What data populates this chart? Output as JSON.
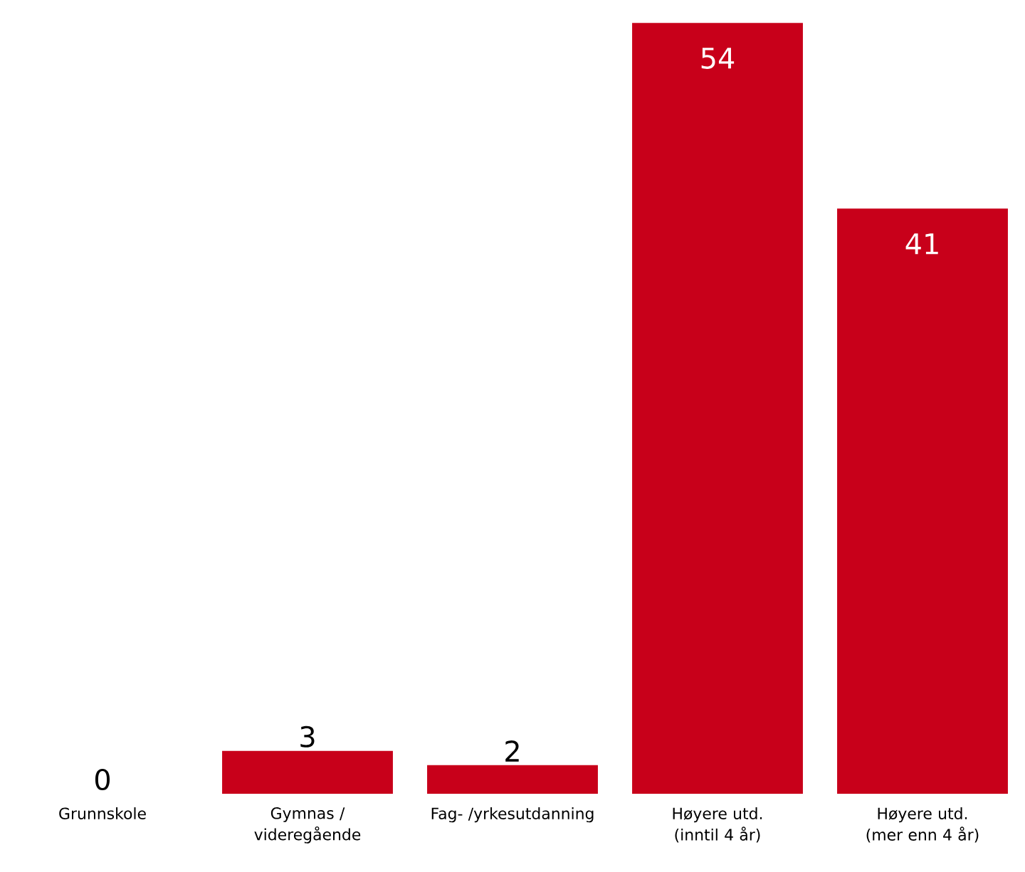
{
  "chart_data": {
    "type": "bar",
    "categories": [
      "Grunnskole",
      "Gymnas / videregående",
      "Fag- /yrkesutdanning",
      "Høyere utd. (inntil 4 år)",
      "Høyere utd. (mer enn 4 år)"
    ],
    "values": [
      0,
      3,
      2,
      54,
      41
    ],
    "color": "#c8001a",
    "data_labels": true,
    "tick_labels": "x"
  }
}
